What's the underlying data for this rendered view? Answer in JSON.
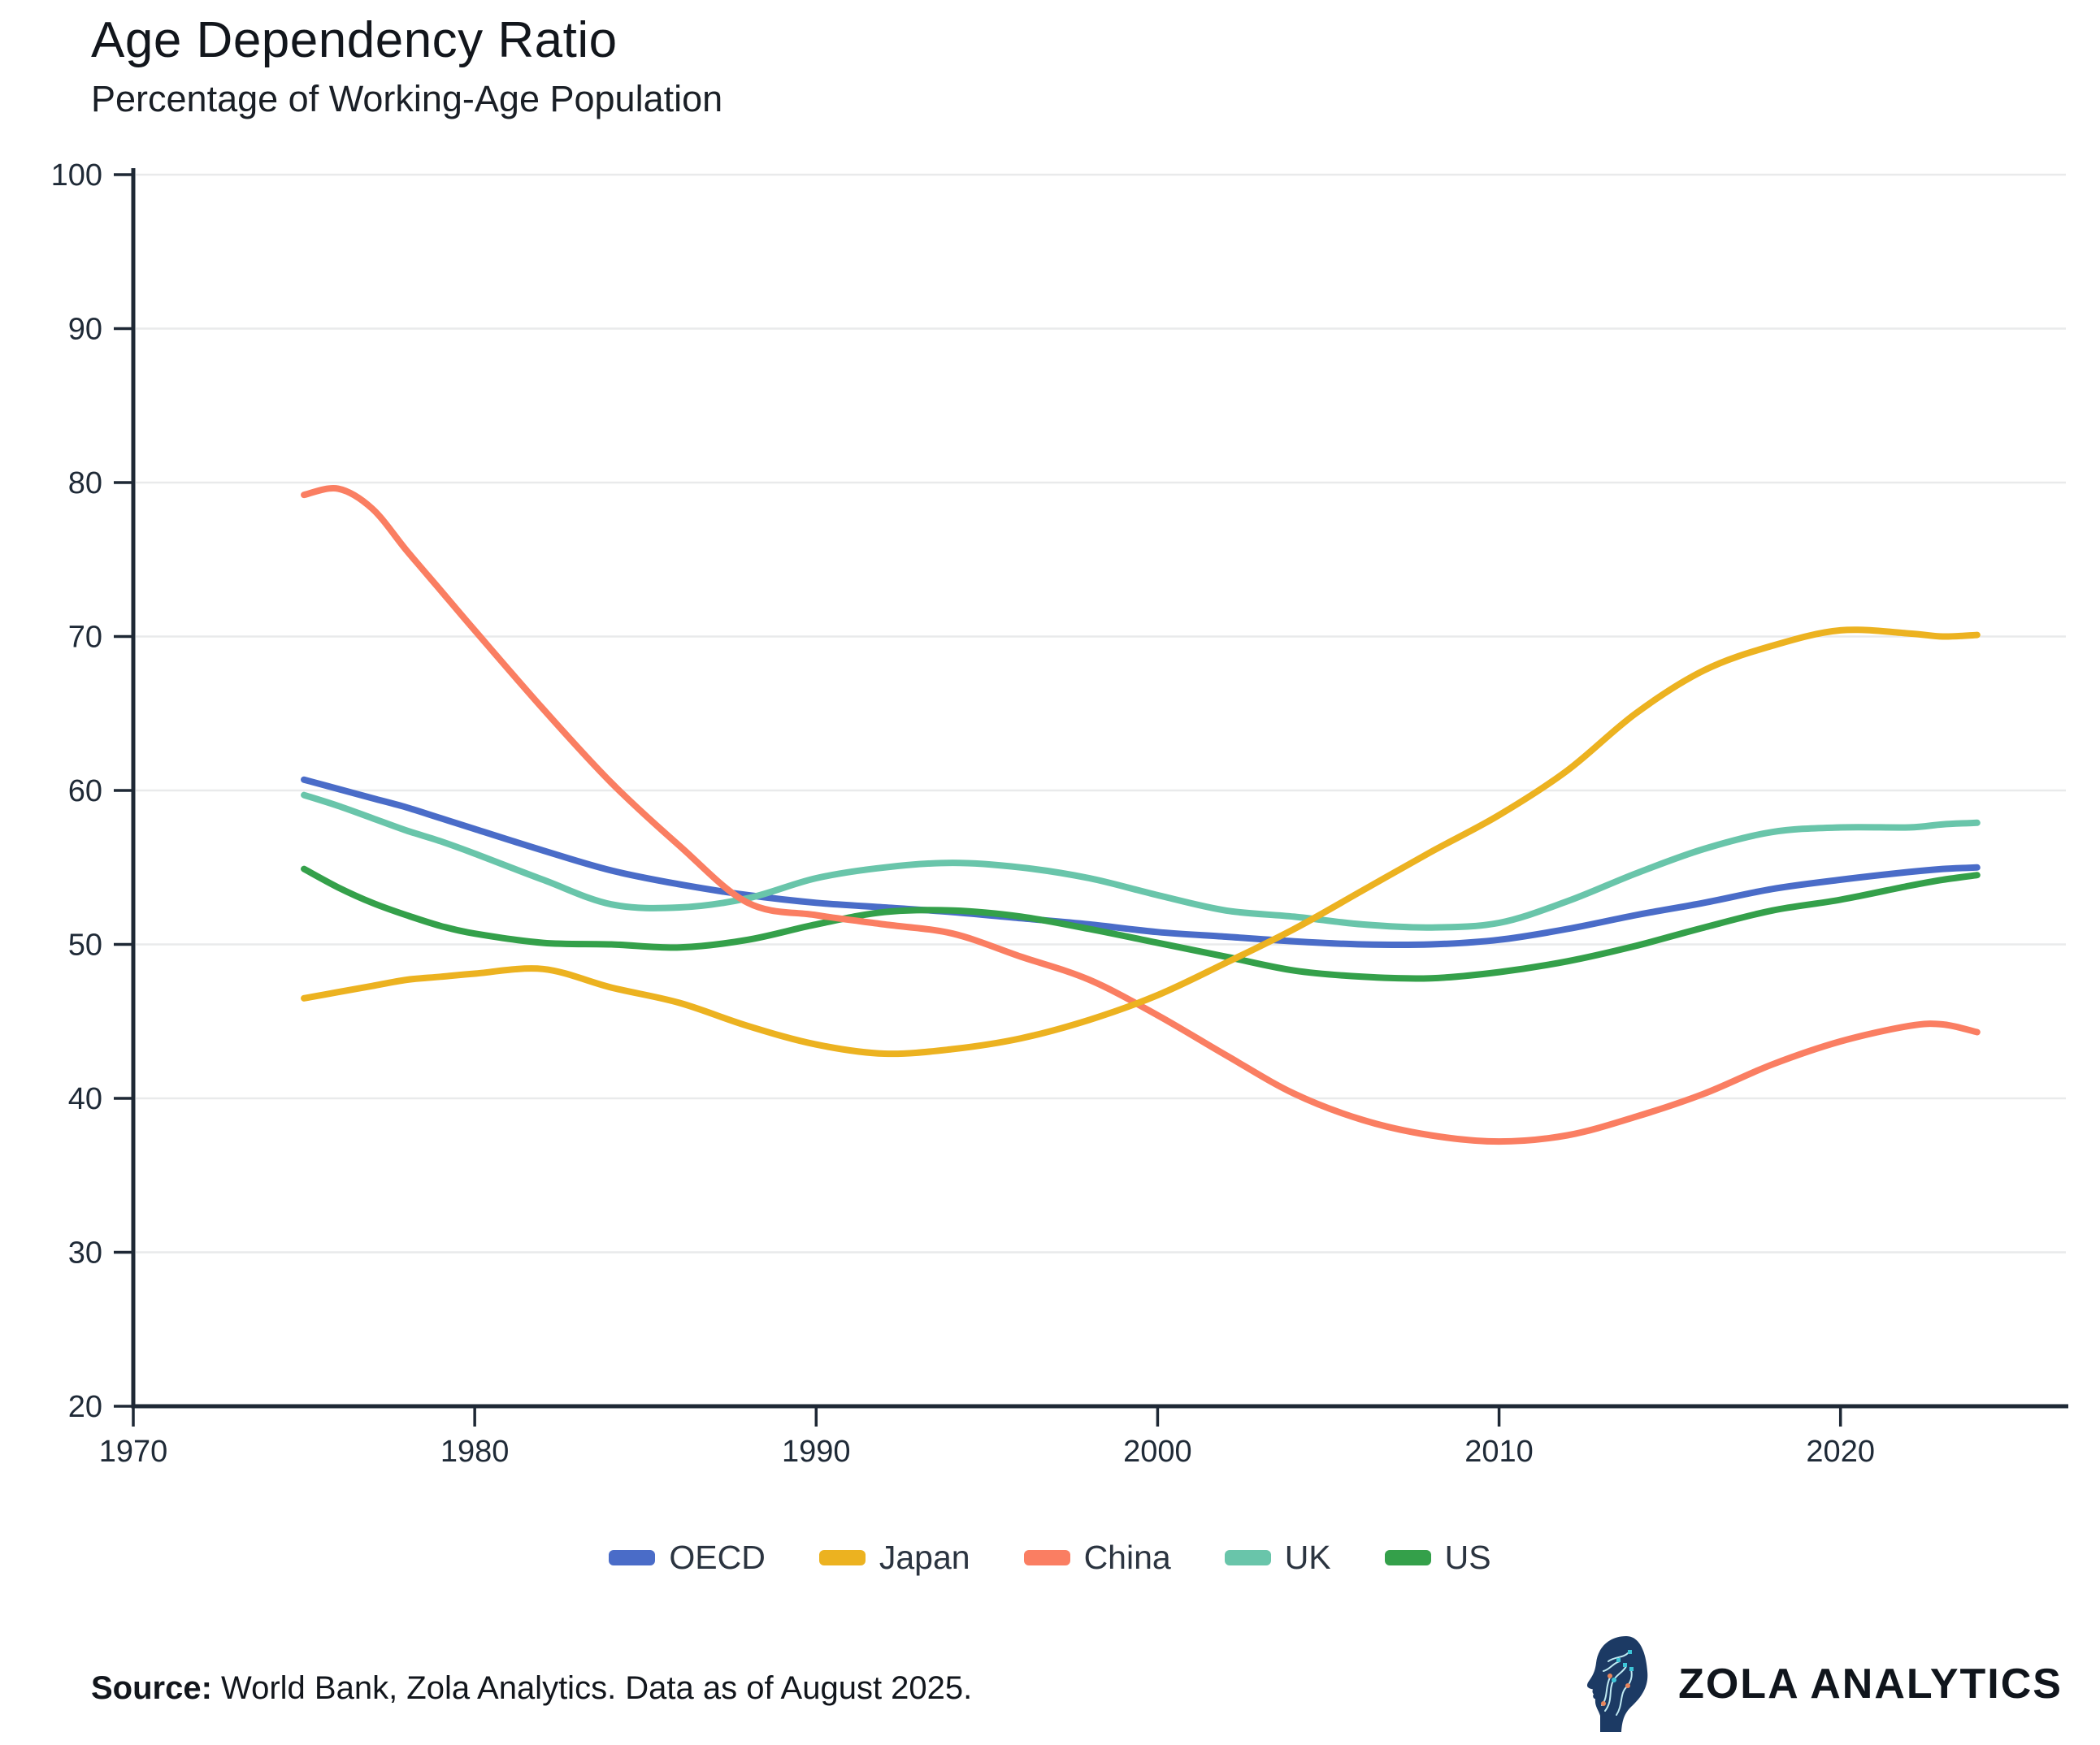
{
  "header": {
    "title": "Age Dependency Ratio",
    "subtitle": "Percentage of Working-Age Population"
  },
  "chart_data": {
    "type": "line",
    "title": "Age Dependency Ratio",
    "subtitle": "Percentage of Working-Age Population",
    "xlabel": "",
    "ylabel": "",
    "grid": "horizontal",
    "legend_position": "bottom-center",
    "xlim": [
      1970,
      2026.6
    ],
    "ylim": [
      20,
      100
    ],
    "x_ticks": [
      1970,
      1980,
      1990,
      2000,
      2010,
      2020
    ],
    "y_ticks": [
      20,
      30,
      40,
      50,
      60,
      70,
      80,
      90,
      100
    ],
    "years": [
      1975,
      1976,
      1977,
      1978,
      1979,
      1980,
      1982,
      1984,
      1986,
      1988,
      1990,
      1992,
      1994,
      1996,
      1998,
      2000,
      2002,
      2004,
      2006,
      2008,
      2010,
      2012,
      2014,
      2016,
      2018,
      2020,
      2022,
      2023,
      2024
    ],
    "series": [
      {
        "name": "OECD",
        "color": "#4a6cc8",
        "values": [
          60.7,
          60.1,
          59.5,
          58.9,
          58.2,
          57.5,
          56.1,
          54.8,
          53.9,
          53.2,
          52.7,
          52.4,
          52.1,
          51.7,
          51.3,
          50.8,
          50.5,
          50.2,
          50.0,
          50.0,
          50.3,
          51.0,
          51.9,
          52.7,
          53.6,
          54.2,
          54.7,
          54.9,
          55.0
        ]
      },
      {
        "name": "Japan",
        "color": "#ecb220",
        "values": [
          46.5,
          46.9,
          47.3,
          47.7,
          47.9,
          48.1,
          48.4,
          47.2,
          46.2,
          44.7,
          43.5,
          42.9,
          43.2,
          43.9,
          45.1,
          46.7,
          48.8,
          51.0,
          53.5,
          56.0,
          58.4,
          61.3,
          65.0,
          67.8,
          69.4,
          70.4,
          70.2,
          70.0,
          70.1
        ]
      },
      {
        "name": "China",
        "color": "#fa7e62",
        "values": [
          79.2,
          79.6,
          78.3,
          75.6,
          73.0,
          70.4,
          65.3,
          60.5,
          56.4,
          52.7,
          51.9,
          51.3,
          50.7,
          49.2,
          47.7,
          45.4,
          42.8,
          40.3,
          38.6,
          37.6,
          37.2,
          37.6,
          38.8,
          40.3,
          42.2,
          43.7,
          44.7,
          44.8,
          44.3
        ]
      },
      {
        "name": "UK",
        "color": "#69c5aa",
        "values": [
          59.7,
          59.0,
          58.2,
          57.4,
          56.7,
          55.9,
          54.2,
          52.6,
          52.4,
          53.0,
          54.3,
          55.0,
          55.3,
          55.0,
          54.3,
          53.2,
          52.2,
          51.8,
          51.3,
          51.1,
          51.4,
          52.8,
          54.6,
          56.2,
          57.3,
          57.6,
          57.6,
          57.8,
          57.9
        ]
      },
      {
        "name": "US",
        "color": "#34a04a",
        "values": [
          54.9,
          53.7,
          52.7,
          51.9,
          51.2,
          50.7,
          50.1,
          50.0,
          49.8,
          50.3,
          51.3,
          52.1,
          52.2,
          51.8,
          51.0,
          50.1,
          49.2,
          48.3,
          47.9,
          47.8,
          48.2,
          48.9,
          49.9,
          51.1,
          52.2,
          52.9,
          53.8,
          54.2,
          54.5
        ]
      }
    ],
    "draw_order": [
      "OECD",
      "UK",
      "US",
      "China",
      "Japan"
    ],
    "axis_color": "#1e2835",
    "grid_color": "#e9eaeb",
    "line_width": 8
  },
  "footer": {
    "source_label": "Source:",
    "source_text": " World Bank, Zola Analytics. Data as of August 2025.",
    "logo_icon": "circuit-head-icon",
    "brand": "ZOLA ANALYTICS"
  }
}
